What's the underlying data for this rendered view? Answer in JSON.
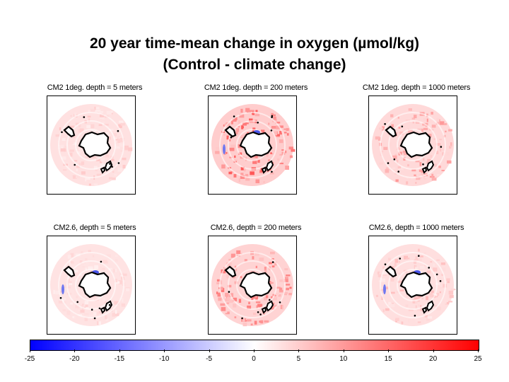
{
  "chart_data": {
    "type": "heatmap",
    "title_line1": "20 year time-mean change in oxygen (µmol/kg)",
    "title_line2": "(Control - climate change)",
    "panels": [
      {
        "label": "CM2 1deg. depth = 5 meters",
        "model": "CM2 1deg.",
        "depth_m": 5,
        "intensity": 0.25,
        "blue_patch": false
      },
      {
        "label": "CM2 1deg. depth = 200 meters",
        "model": "CM2 1deg.",
        "depth_m": 200,
        "intensity": 0.75,
        "blue_patch": true
      },
      {
        "label": "CM2 1deg. depth = 1000 meters",
        "model": "CM2 1deg.",
        "depth_m": 1000,
        "intensity": 0.45,
        "blue_patch": false
      },
      {
        "label": "CM2.6, depth = 5 meters",
        "model": "CM2.6",
        "depth_m": 5,
        "intensity": 0.2,
        "blue_patch": true
      },
      {
        "label": "CM2.6, depth = 200 meters",
        "model": "CM2.6",
        "depth_m": 200,
        "intensity": 0.6,
        "blue_patch": false
      },
      {
        "label": "CM2.6, depth = 1000 meters",
        "model": "CM2.6",
        "depth_m": 1000,
        "intensity": 0.3,
        "blue_patch": true
      }
    ],
    "colorbar": {
      "min": -25,
      "max": 25,
      "ticks": [
        -25,
        -20,
        -15,
        -10,
        -5,
        0,
        5,
        10,
        15,
        20,
        25
      ],
      "low_color": "#0000ff",
      "mid_color": "#ffffff",
      "high_color": "#ff0000"
    }
  }
}
